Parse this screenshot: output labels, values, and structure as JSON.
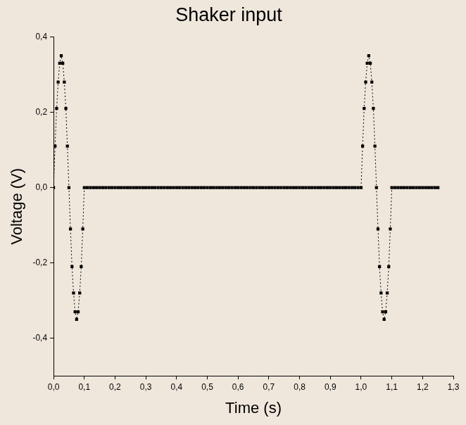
{
  "chart_data": {
    "type": "scatter",
    "title": "Shaker input",
    "x_label": "Time (s)",
    "y_label": "Voltage (V)",
    "color": "#000000",
    "marker": "square",
    "line_style": "dotted",
    "grid": false,
    "xlim": [
      0,
      1.3
    ],
    "ylim": [
      -0.5,
      0.4
    ],
    "xticks": [
      {
        "value": 0,
        "label": "0,0"
      },
      {
        "value": 0.1,
        "label": "0,1"
      },
      {
        "value": 0.2,
        "label": "0,2"
      },
      {
        "value": 0.3,
        "label": "0,3"
      },
      {
        "value": 0.4,
        "label": "0,4"
      },
      {
        "value": 0.5,
        "label": "0,5"
      },
      {
        "value": 0.6,
        "label": "0,6"
      },
      {
        "value": 0.7,
        "label": "0,7"
      },
      {
        "value": 0.8,
        "label": "0,8"
      },
      {
        "value": 0.9,
        "label": "0,9"
      },
      {
        "value": 1.0,
        "label": "1,0"
      },
      {
        "value": 1.1,
        "label": "1,1"
      },
      {
        "value": 1.2,
        "label": "1,2"
      },
      {
        "value": 1.3,
        "label": "1,3"
      }
    ],
    "yticks": [
      {
        "value": -0.4,
        "label": "-0,4"
      },
      {
        "value": -0.2,
        "label": "-0,2"
      },
      {
        "value": 0,
        "label": "0,0"
      },
      {
        "value": 0.2,
        "label": "0,2"
      },
      {
        "value": 0.4,
        "label": "0,4"
      }
    ],
    "x": [
      0,
      0.005,
      0.01,
      0.015,
      0.02,
      0.025,
      0.03,
      0.035,
      0.04,
      0.045,
      0.05,
      0.055,
      0.06,
      0.065,
      0.07,
      0.075,
      0.08,
      0.085,
      0.09,
      0.095,
      0.1,
      0.11,
      0.12,
      0.13,
      0.14,
      0.15,
      0.16,
      0.17,
      0.18,
      0.19,
      0.2,
      0.21,
      0.22,
      0.23,
      0.24,
      0.25,
      0.26,
      0.27,
      0.28,
      0.29,
      0.3,
      0.31,
      0.32,
      0.33,
      0.34,
      0.35,
      0.36,
      0.37,
      0.38,
      0.39,
      0.4,
      0.41,
      0.42,
      0.43,
      0.44,
      0.45,
      0.46,
      0.47,
      0.48,
      0.49,
      0.5,
      0.51,
      0.52,
      0.53,
      0.54,
      0.55,
      0.56,
      0.57,
      0.58,
      0.59,
      0.6,
      0.61,
      0.62,
      0.63,
      0.64,
      0.65,
      0.66,
      0.67,
      0.68,
      0.69,
      0.7,
      0.71,
      0.72,
      0.73,
      0.74,
      0.75,
      0.76,
      0.77,
      0.78,
      0.79,
      0.8,
      0.81,
      0.82,
      0.83,
      0.84,
      0.85,
      0.86,
      0.87,
      0.88,
      0.89,
      0.9,
      0.91,
      0.92,
      0.93,
      0.94,
      0.95,
      0.96,
      0.97,
      0.98,
      0.99,
      1,
      1.005,
      1.01,
      1.015,
      1.02,
      1.025,
      1.03,
      1.035,
      1.04,
      1.045,
      1.05,
      1.055,
      1.06,
      1.065,
      1.07,
      1.075,
      1.08,
      1.085,
      1.09,
      1.095,
      1.1,
      1.11,
      1.12,
      1.13,
      1.14,
      1.15,
      1.16,
      1.17,
      1.18,
      1.19,
      1.2,
      1.21,
      1.22,
      1.23,
      1.24,
      1.25
    ],
    "values": [
      0,
      0.11,
      0.21,
      0.28,
      0.33,
      0.35,
      0.33,
      0.28,
      0.21,
      0.11,
      0,
      -0.11,
      -0.21,
      -0.28,
      -0.33,
      -0.35,
      -0.33,
      -0.28,
      -0.21,
      -0.11,
      0,
      0,
      0,
      0,
      0,
      0,
      0,
      0,
      0,
      0,
      0,
      0,
      0,
      0,
      0,
      0,
      0,
      0,
      0,
      0,
      0,
      0,
      0,
      0,
      0,
      0,
      0,
      0,
      0,
      0,
      0,
      0,
      0,
      0,
      0,
      0,
      0,
      0,
      0,
      0,
      0,
      0,
      0,
      0,
      0,
      0,
      0,
      0,
      0,
      0,
      0,
      0,
      0,
      0,
      0,
      0,
      0,
      0,
      0,
      0,
      0,
      0,
      0,
      0,
      0,
      0,
      0,
      0,
      0,
      0,
      0,
      0,
      0,
      0,
      0,
      0,
      0,
      0,
      0,
      0,
      0,
      0,
      0,
      0,
      0,
      0,
      0,
      0,
      0,
      0,
      0,
      0.11,
      0.21,
      0.28,
      0.33,
      0.35,
      0.33,
      0.28,
      0.21,
      0.11,
      0,
      -0.11,
      -0.21,
      -0.28,
      -0.33,
      -0.35,
      -0.33,
      -0.28,
      -0.21,
      -0.11,
      0,
      0,
      0,
      0,
      0,
      0,
      0,
      0,
      0,
      0,
      0,
      0,
      0,
      0,
      0,
      0
    ]
  }
}
